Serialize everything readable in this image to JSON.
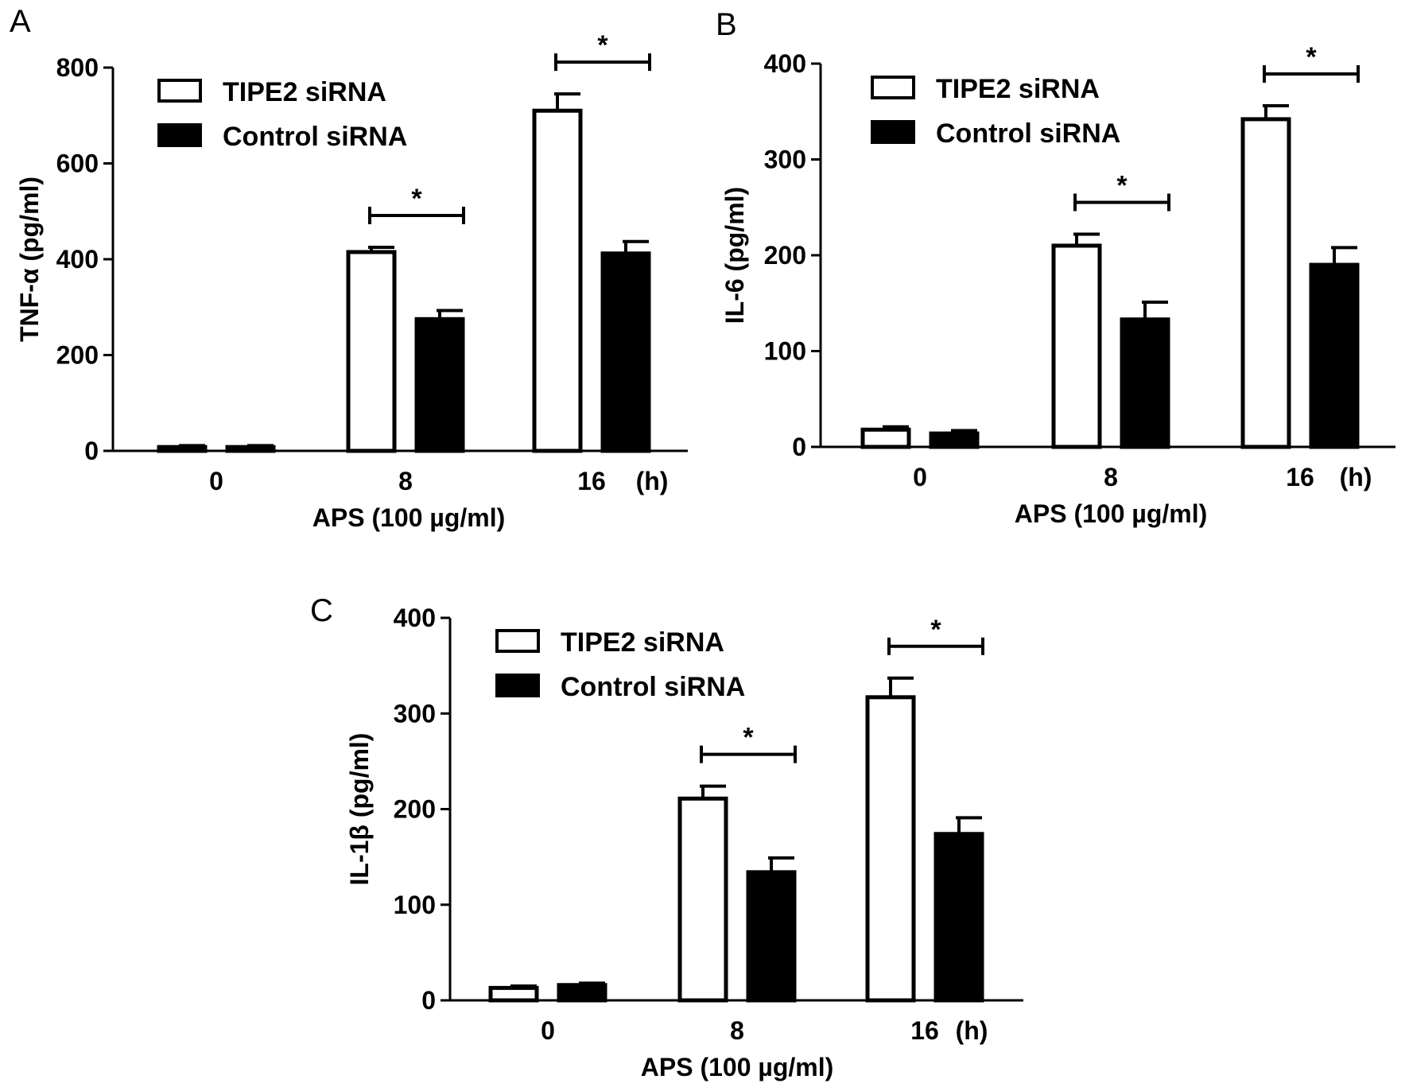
{
  "figure": {
    "background": "#ffffff"
  },
  "legend": {
    "entries": [
      {
        "label": "TIPE2 siRNA",
        "fill": "#ffffff"
      },
      {
        "label": "Control siRNA",
        "fill": "#000000"
      }
    ]
  },
  "chart_data": [
    {
      "type": "bar",
      "panel": "A",
      "title": "",
      "categories": [
        "0",
        "8",
        "16"
      ],
      "category_suffix": "(h)",
      "xlabel": "APS (100 µg/ml)",
      "ylabel": "TNF-α (pg/ml)",
      "ylim": [
        0,
        800
      ],
      "yticks": [
        0,
        200,
        400,
        600,
        800
      ],
      "grid": false,
      "legend_position": "top-left",
      "series": [
        {
          "name": "TIPE2 siRNA",
          "values": [
            8,
            415,
            710
          ],
          "errors": [
            3,
            10,
            35
          ]
        },
        {
          "name": "Control siRNA",
          "values": [
            8,
            275,
            412
          ],
          "errors": [
            3,
            18,
            25
          ]
        }
      ],
      "significance": [
        {
          "category": 1,
          "label": "*"
        },
        {
          "category": 2,
          "label": "*"
        }
      ]
    },
    {
      "type": "bar",
      "panel": "B",
      "title": "",
      "categories": [
        "0",
        "8",
        "16"
      ],
      "category_suffix": "(h)",
      "xlabel": "APS (100 µg/ml)",
      "ylabel": "IL-6 (pg/ml)",
      "ylim": [
        0,
        400
      ],
      "yticks": [
        0,
        100,
        200,
        300,
        400
      ],
      "grid": false,
      "legend_position": "top-left",
      "series": [
        {
          "name": "TIPE2 siRNA",
          "values": [
            18,
            210,
            342
          ],
          "errors": [
            3,
            12,
            14
          ]
        },
        {
          "name": "Control siRNA",
          "values": [
            14,
            133,
            190
          ],
          "errors": [
            3,
            18,
            18
          ]
        }
      ],
      "significance": [
        {
          "category": 1,
          "label": "*"
        },
        {
          "category": 2,
          "label": "*"
        }
      ]
    },
    {
      "type": "bar",
      "panel": "C",
      "title": "",
      "categories": [
        "0",
        "8",
        "16"
      ],
      "category_suffix": "(h)",
      "xlabel": "APS (100 µg/ml)",
      "ylabel": "IL-1β (pg/ml)",
      "ylim": [
        0,
        400
      ],
      "yticks": [
        0,
        100,
        200,
        300,
        400
      ],
      "grid": false,
      "legend_position": "top-left",
      "series": [
        {
          "name": "TIPE2 siRNA",
          "values": [
            13,
            211,
            317
          ],
          "errors": [
            2,
            13,
            20
          ]
        },
        {
          "name": "Control siRNA",
          "values": [
            16,
            134,
            174
          ],
          "errors": [
            2,
            15,
            17
          ]
        }
      ],
      "significance": [
        {
          "category": 1,
          "label": "*"
        },
        {
          "category": 2,
          "label": "*"
        }
      ]
    }
  ]
}
